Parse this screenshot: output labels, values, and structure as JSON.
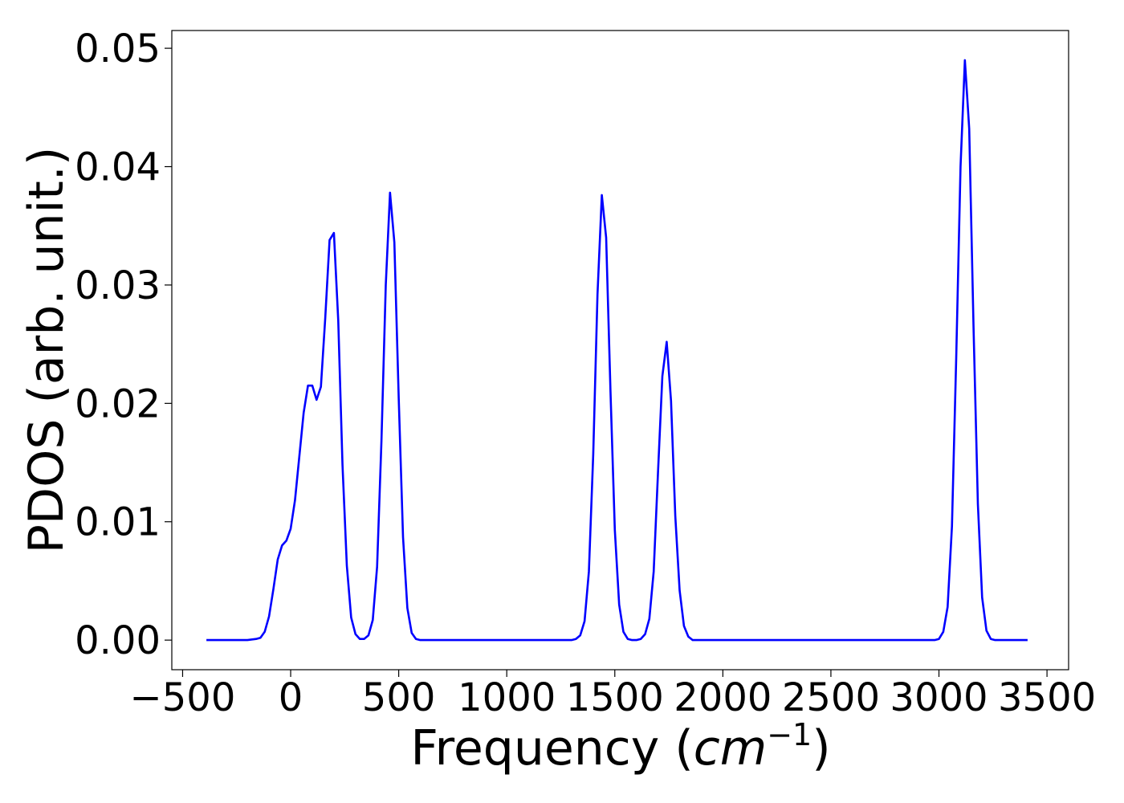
{
  "chart_data": {
    "type": "line",
    "xlabel_main": "Frequency (",
    "xlabel_unit": "cm",
    "xlabel_exp": "−1",
    "xlabel_close": ")",
    "ylabel": "PDOS (arb. unit.)",
    "xlim": [
      -550,
      3600
    ],
    "ylim": [
      -0.0025,
      0.0515
    ],
    "xticks": [
      -500,
      0,
      500,
      1000,
      1500,
      2000,
      2500,
      3000,
      3500
    ],
    "xtick_labels": [
      "−500",
      "0",
      "500",
      "1000",
      "1500",
      "2000",
      "2500",
      "3000",
      "3500"
    ],
    "yticks": [
      0,
      0.01,
      0.02,
      0.03,
      0.04,
      0.05
    ],
    "ytick_labels": [
      "0.00",
      "0.01",
      "0.02",
      "0.03",
      "0.04",
      "0.05"
    ],
    "grid": false,
    "series": [
      {
        "color": "#0000ff",
        "points": [
          [
            -390,
            0
          ],
          [
            -300,
            0
          ],
          [
            -200,
            0
          ],
          [
            -160,
            0.0001
          ],
          [
            -140,
            0.0002
          ],
          [
            -120,
            0.0007
          ],
          [
            -100,
            0.002
          ],
          [
            -80,
            0.0043
          ],
          [
            -60,
            0.0068
          ],
          [
            -40,
            0.008
          ],
          [
            -20,
            0.0084
          ],
          [
            0,
            0.0094
          ],
          [
            20,
            0.0118
          ],
          [
            40,
            0.0155
          ],
          [
            60,
            0.0192
          ],
          [
            80,
            0.0215
          ],
          [
            100,
            0.0215
          ],
          [
            120,
            0.0203
          ],
          [
            140,
            0.0214
          ],
          [
            160,
            0.0272
          ],
          [
            180,
            0.0338
          ],
          [
            200,
            0.0344
          ],
          [
            220,
            0.027
          ],
          [
            240,
            0.0148
          ],
          [
            260,
            0.0063
          ],
          [
            280,
            0.0019
          ],
          [
            300,
            0.0005
          ],
          [
            320,
            0.0001
          ],
          [
            340,
            0.0001
          ],
          [
            360,
            0.0004
          ],
          [
            380,
            0.0017
          ],
          [
            400,
            0.0062
          ],
          [
            420,
            0.0168
          ],
          [
            440,
            0.03
          ],
          [
            460,
            0.0378
          ],
          [
            480,
            0.0336
          ],
          [
            500,
            0.0205
          ],
          [
            520,
            0.0087
          ],
          [
            540,
            0.0027
          ],
          [
            560,
            0.0006
          ],
          [
            580,
            0.0001
          ],
          [
            600,
            0
          ],
          [
            800,
            0
          ],
          [
            1000,
            0
          ],
          [
            1200,
            0
          ],
          [
            1300,
            0
          ],
          [
            1320,
            0.0001
          ],
          [
            1340,
            0.0004
          ],
          [
            1360,
            0.0016
          ],
          [
            1380,
            0.0058
          ],
          [
            1400,
            0.0157
          ],
          [
            1420,
            0.0292
          ],
          [
            1440,
            0.0376
          ],
          [
            1460,
            0.034
          ],
          [
            1480,
            0.021
          ],
          [
            1500,
            0.0093
          ],
          [
            1520,
            0.003
          ],
          [
            1540,
            0.0007
          ],
          [
            1560,
            0.0001
          ],
          [
            1580,
            0
          ],
          [
            1600,
            0
          ],
          [
            1620,
            0.0001
          ],
          [
            1640,
            0.0005
          ],
          [
            1660,
            0.0018
          ],
          [
            1680,
            0.0058
          ],
          [
            1700,
            0.0142
          ],
          [
            1720,
            0.0223
          ],
          [
            1740,
            0.0252
          ],
          [
            1760,
            0.0202
          ],
          [
            1780,
            0.0105
          ],
          [
            1800,
            0.0042
          ],
          [
            1820,
            0.0012
          ],
          [
            1840,
            0.0003
          ],
          [
            1860,
            0
          ],
          [
            2000,
            0
          ],
          [
            2500,
            0
          ],
          [
            2900,
            0
          ],
          [
            2980,
            0
          ],
          [
            3000,
            0.0001
          ],
          [
            3020,
            0.0007
          ],
          [
            3040,
            0.0028
          ],
          [
            3060,
            0.0096
          ],
          [
            3080,
            0.0238
          ],
          [
            3100,
            0.04
          ],
          [
            3120,
            0.049
          ],
          [
            3140,
            0.0432
          ],
          [
            3160,
            0.0264
          ],
          [
            3180,
            0.0115
          ],
          [
            3200,
            0.0036
          ],
          [
            3220,
            0.0008
          ],
          [
            3240,
            0.0001
          ],
          [
            3260,
            0
          ],
          [
            3300,
            0
          ],
          [
            3410,
            0
          ]
        ]
      }
    ]
  }
}
